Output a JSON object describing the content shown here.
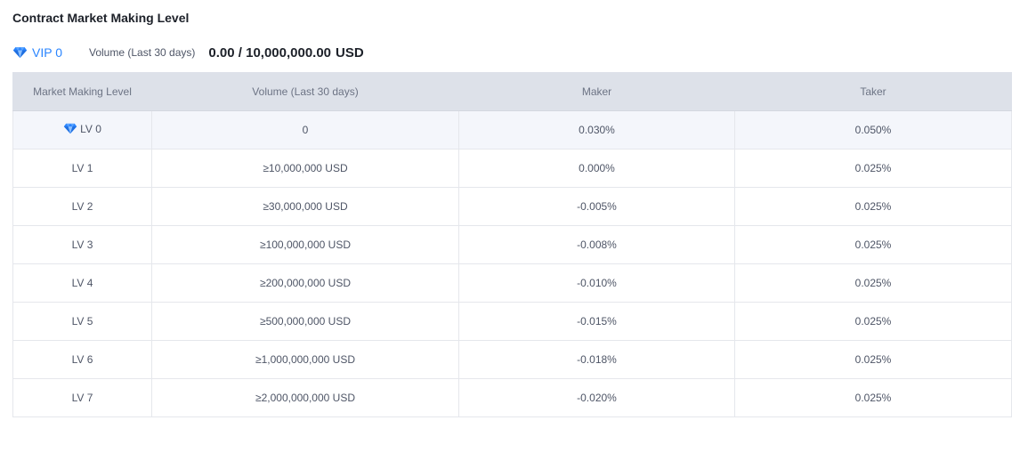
{
  "page": {
    "title": "Contract Market Making Level"
  },
  "summary": {
    "vip_label": "VIP 0",
    "volume_label": "Volume (Last 30 days)",
    "volume_value": "0.00 / 10,000,000.00",
    "volume_unit": "USD",
    "icon": "diamond-icon",
    "accent_color": "#2a85ff"
  },
  "table": {
    "headers": {
      "level": "Market Making Level",
      "volume": "Volume (Last 30 days)",
      "maker": "Maker",
      "taker": "Taker"
    },
    "rows": [
      {
        "level": "LV 0",
        "volume": "0",
        "maker": "0.030%",
        "taker": "0.050%"
      },
      {
        "level": "LV 1",
        "volume": "≥10,000,000 USD",
        "maker": "0.000%",
        "taker": "0.025%"
      },
      {
        "level": "LV 2",
        "volume": "≥30,000,000 USD",
        "maker": "-0.005%",
        "taker": "0.025%"
      },
      {
        "level": "LV 3",
        "volume": "≥100,000,000 USD",
        "maker": "-0.008%",
        "taker": "0.025%"
      },
      {
        "level": "LV 4",
        "volume": "≥200,000,000 USD",
        "maker": "-0.010%",
        "taker": "0.025%"
      },
      {
        "level": "LV 5",
        "volume": "≥500,000,000 USD",
        "maker": "-0.015%",
        "taker": "0.025%"
      },
      {
        "level": "LV 6",
        "volume": "≥1,000,000,000 USD",
        "maker": "-0.018%",
        "taker": "0.025%"
      },
      {
        "level": "LV 7",
        "volume": "≥2,000,000,000 USD",
        "maker": "-0.020%",
        "taker": "0.025%"
      }
    ],
    "current_level_row": 0
  }
}
